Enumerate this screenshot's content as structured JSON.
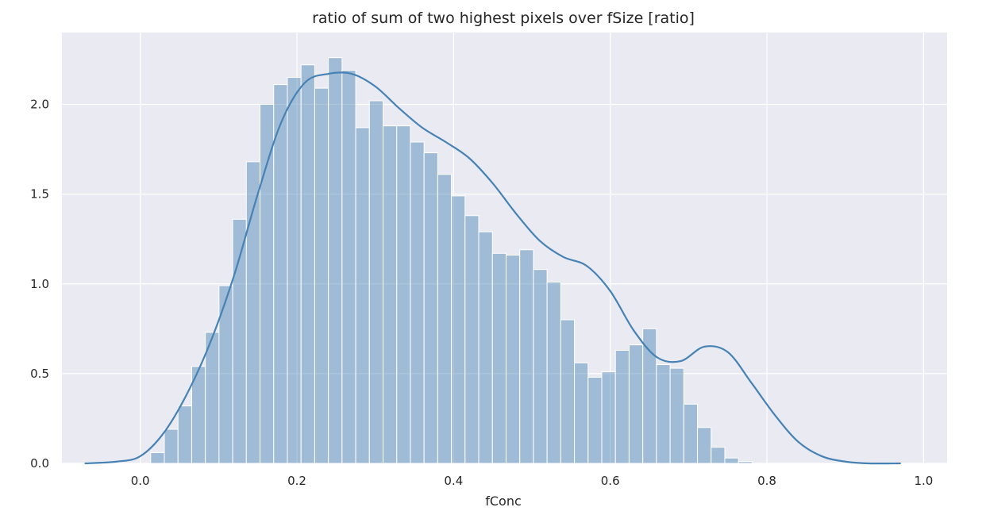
{
  "chart_data": {
    "type": "bar",
    "title": "ratio of sum of two highest pixels over fSize [ratio]",
    "xlabel": "fConc",
    "ylabel": "",
    "xlim": [
      -0.1,
      1.03
    ],
    "ylim": [
      0.0,
      2.4
    ],
    "xticks": [
      0.0,
      0.2,
      0.4,
      0.6,
      0.8,
      1.0
    ],
    "xtick_labels": [
      "0.0",
      "0.2",
      "0.4",
      "0.6",
      "0.8",
      "1.0"
    ],
    "yticks": [
      0.0,
      0.5,
      1.0,
      1.5,
      2.0
    ],
    "ytick_labels": [
      "0.0",
      "0.5",
      "1.0",
      "1.5",
      "2.0"
    ],
    "grid": true,
    "bar_color": "#4682b4",
    "line_color": "#4682b4",
    "background_color": "#eaeaf2",
    "bin_start": 0.0133,
    "bin_width": 0.01745,
    "histogram": {
      "name": "histogram",
      "values": [
        0.06,
        0.19,
        0.32,
        0.54,
        0.73,
        0.99,
        1.36,
        1.68,
        2.0,
        2.11,
        2.15,
        2.22,
        2.09,
        2.26,
        2.19,
        1.87,
        2.02,
        1.88,
        1.88,
        1.79,
        1.73,
        1.61,
        1.49,
        1.38,
        1.29,
        1.17,
        1.16,
        1.19,
        1.08,
        1.01,
        0.8,
        0.56,
        0.48,
        0.51,
        0.63,
        0.66,
        0.75,
        0.55,
        0.53,
        0.33,
        0.2,
        0.09,
        0.03,
        0.01
      ]
    },
    "kde": {
      "name": "kde",
      "x": [
        -0.07,
        -0.03,
        0.0,
        0.03,
        0.06,
        0.09,
        0.12,
        0.15,
        0.18,
        0.21,
        0.24,
        0.27,
        0.3,
        0.33,
        0.36,
        0.39,
        0.42,
        0.45,
        0.48,
        0.51,
        0.54,
        0.57,
        0.6,
        0.63,
        0.66,
        0.69,
        0.72,
        0.75,
        0.78,
        0.81,
        0.84,
        0.87,
        0.9,
        0.93,
        0.97
      ],
      "y": [
        0.0,
        0.01,
        0.04,
        0.17,
        0.39,
        0.68,
        1.05,
        1.5,
        1.9,
        2.12,
        2.17,
        2.17,
        2.1,
        1.98,
        1.87,
        1.79,
        1.7,
        1.56,
        1.39,
        1.24,
        1.15,
        1.1,
        0.96,
        0.74,
        0.59,
        0.57,
        0.65,
        0.62,
        0.45,
        0.27,
        0.12,
        0.04,
        0.01,
        0.0,
        0.0
      ]
    }
  }
}
